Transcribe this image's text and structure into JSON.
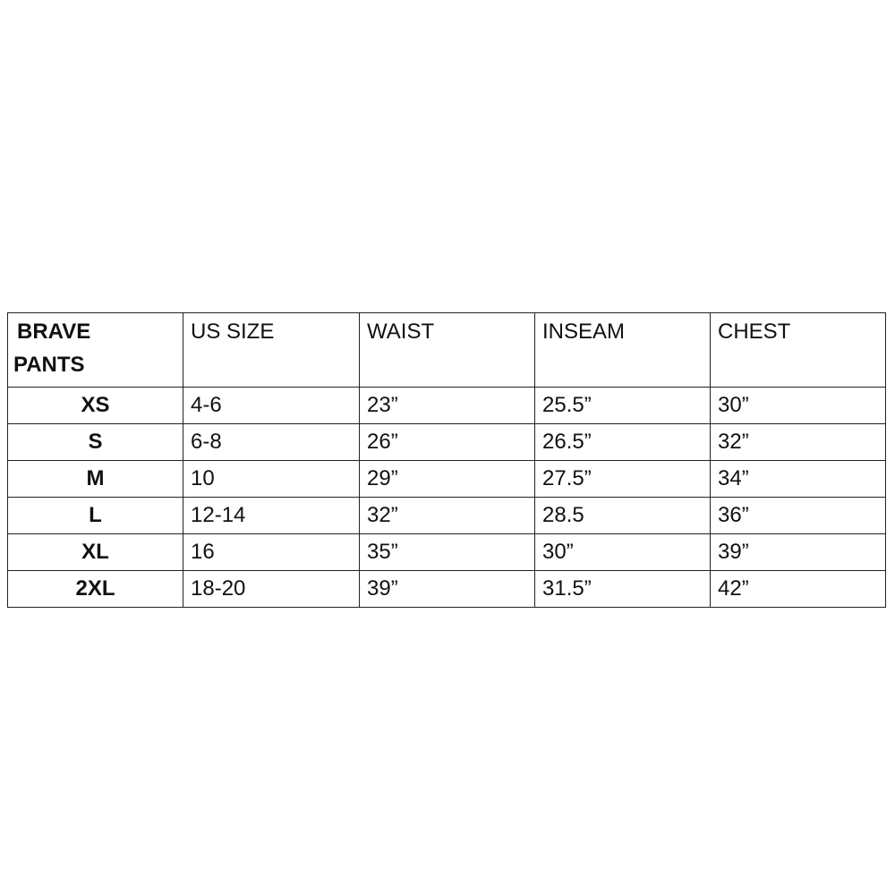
{
  "table": {
    "corner_header": [
      "BRAVE",
      "PANTS"
    ],
    "headers": [
      "US SIZE",
      "WAIST",
      "INSEAM",
      "CHEST"
    ],
    "rows": [
      {
        "size": "XS",
        "us_size": "4-6",
        "waist": "23”",
        "inseam": "25.5”",
        "chest": "30”"
      },
      {
        "size": "S",
        "us_size": "6-8",
        "waist": "26”",
        "inseam": "26.5”",
        "chest": "32”"
      },
      {
        "size": "M",
        "us_size": "10",
        "waist": "29”",
        "inseam": "27.5”",
        "chest": "34”"
      },
      {
        "size": "L",
        "us_size": "12-14",
        "waist": "32”",
        "inseam": "28.5",
        "chest": "36”"
      },
      {
        "size": "XL",
        "us_size": "16",
        "waist": "35”",
        "inseam": "30”",
        "chest": "39”"
      },
      {
        "size": "2XL",
        "us_size": "18-20",
        "waist": "39”",
        "inseam": "31.5”",
        "chest": "42”"
      }
    ]
  }
}
